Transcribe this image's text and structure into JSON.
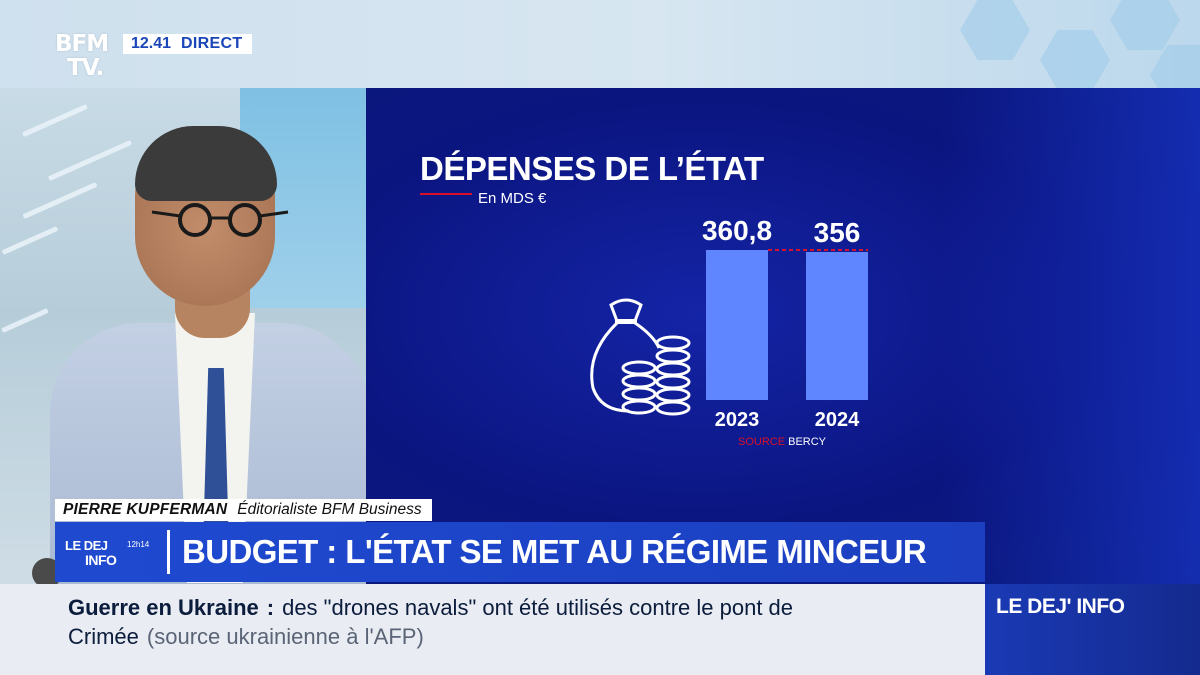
{
  "header": {
    "channel_logo_line1": "BFM",
    "channel_logo_line2": "TV.",
    "time": "12.41",
    "live_label": "DIRECT"
  },
  "graphic": {
    "title": "DÉPENSES DE L’ÉTAT",
    "subtitle": "En MDS €",
    "icon": "money-bag-coins-icon",
    "source_label": "SOURCE",
    "source_value": "BERCY"
  },
  "chart_data": {
    "type": "bar",
    "title": "DÉPENSES DE L’ÉTAT",
    "ylabel": "En MDS €",
    "categories": [
      "2023",
      "2024"
    ],
    "values": [
      360.8,
      356
    ],
    "value_labels": [
      "360,8",
      "356"
    ],
    "reference_line": 360.8,
    "bar_color": "#5f86ff",
    "reference_color": "#d8102a"
  },
  "lower_third": {
    "name": "PIERRE KUPFERMAN",
    "role": "Éditorialiste BFM Business",
    "show_logo_line1": "LE DEJ",
    "show_logo_line2": "INFO",
    "show_logo_time": "12h14",
    "headline": "BUDGET : L'ÉTAT SE MET AU RÉGIME MINCEUR"
  },
  "ticker": {
    "topic": "Guerre en Ukraine",
    "colon": ":",
    "text_line1": "des \"drones navals\" ont été utilisés contre le pont de",
    "text_line2": "Crimée",
    "source": "(source ukrainienne à l'AFP)",
    "brand": "LE DEJ' INFO"
  },
  "colors": {
    "accent_blue": "#1f4ad0",
    "graphic_bg": "#0b1580",
    "red": "#d8102a"
  }
}
